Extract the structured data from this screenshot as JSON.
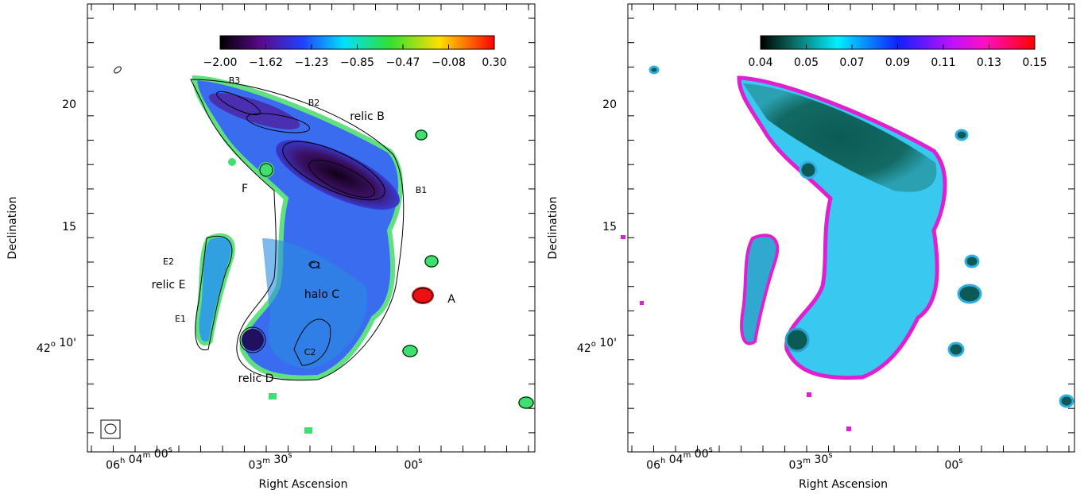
{
  "panels": [
    {
      "colorbar": {
        "ticks": [
          "−2.00",
          "−1.62",
          "−1.23",
          "−0.85",
          "−0.47",
          "−0.08",
          "0.30"
        ]
      },
      "yaxis": {
        "label": "Declination",
        "ticks": [
          [
            [
              "20"
            ]
          ],
          [
            [
              "15"
            ]
          ],
          [
            [
              "42",
              "o"
            ],
            [
              " 10'"
            ]
          ]
        ]
      },
      "xaxis": {
        "label": "Right Ascension",
        "ticks": [
          [
            [
              "06",
              "h"
            ],
            [
              " 04",
              "m"
            ],
            [
              " 00",
              "s"
            ]
          ],
          [
            [
              "03",
              "m"
            ],
            [
              " 30",
              "s"
            ]
          ],
          [
            [
              "00",
              "s"
            ]
          ]
        ]
      },
      "annotations": [
        "B3",
        "B2",
        "relic B",
        "B1",
        "F",
        "E2",
        "C1",
        "relic E",
        "halo C",
        "A",
        "E1",
        "C2",
        "relic D"
      ]
    },
    {
      "colorbar": {
        "ticks": [
          "0.04",
          "0.05",
          "0.07",
          "0.09",
          "0.11",
          "0.13",
          "0.15"
        ]
      },
      "yaxis": {
        "label": "Declination",
        "ticks": [
          [
            [
              "20"
            ]
          ],
          [
            [
              "15"
            ]
          ],
          [
            [
              "42",
              "o"
            ],
            [
              " 10'"
            ]
          ]
        ]
      },
      "xaxis": {
        "label": "Right Ascension",
        "ticks": [
          [
            [
              "06",
              "h"
            ],
            [
              " 04",
              "m"
            ],
            [
              " 00",
              "s"
            ]
          ],
          [
            [
              "03",
              "m"
            ],
            [
              " 30",
              "s"
            ]
          ],
          [
            [
              "00",
              "s"
            ]
          ]
        ]
      }
    }
  ]
}
